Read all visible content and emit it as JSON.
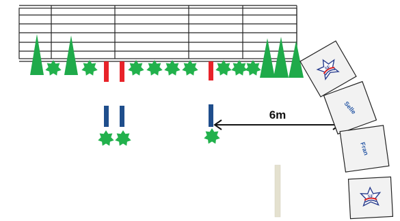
{
  "diagram": {
    "measurement": {
      "label": "6m"
    },
    "panels": [
      {
        "kind": "logo",
        "icon": "sf-star-logo-icon",
        "logo_text": "SF"
      },
      {
        "kind": "word",
        "word": "Selle"
      },
      {
        "kind": "word",
        "word": "Fran"
      },
      {
        "kind": "logo",
        "icon": "sf-star-logo-icon",
        "logo_text": "SF"
      }
    ],
    "colors": {
      "outline": "#222222",
      "tree": "#1faa4a",
      "shrub": "#22b14c",
      "pole_red": "#e8232a",
      "pole_blue": "#1f4e8c",
      "ground_pole": "#e4e1cf",
      "panel_fill": "#f2f2f2",
      "word_text": "#2b5aa6",
      "logo_red": "#e02020",
      "logo_blue": "#2b3f8f"
    }
  }
}
